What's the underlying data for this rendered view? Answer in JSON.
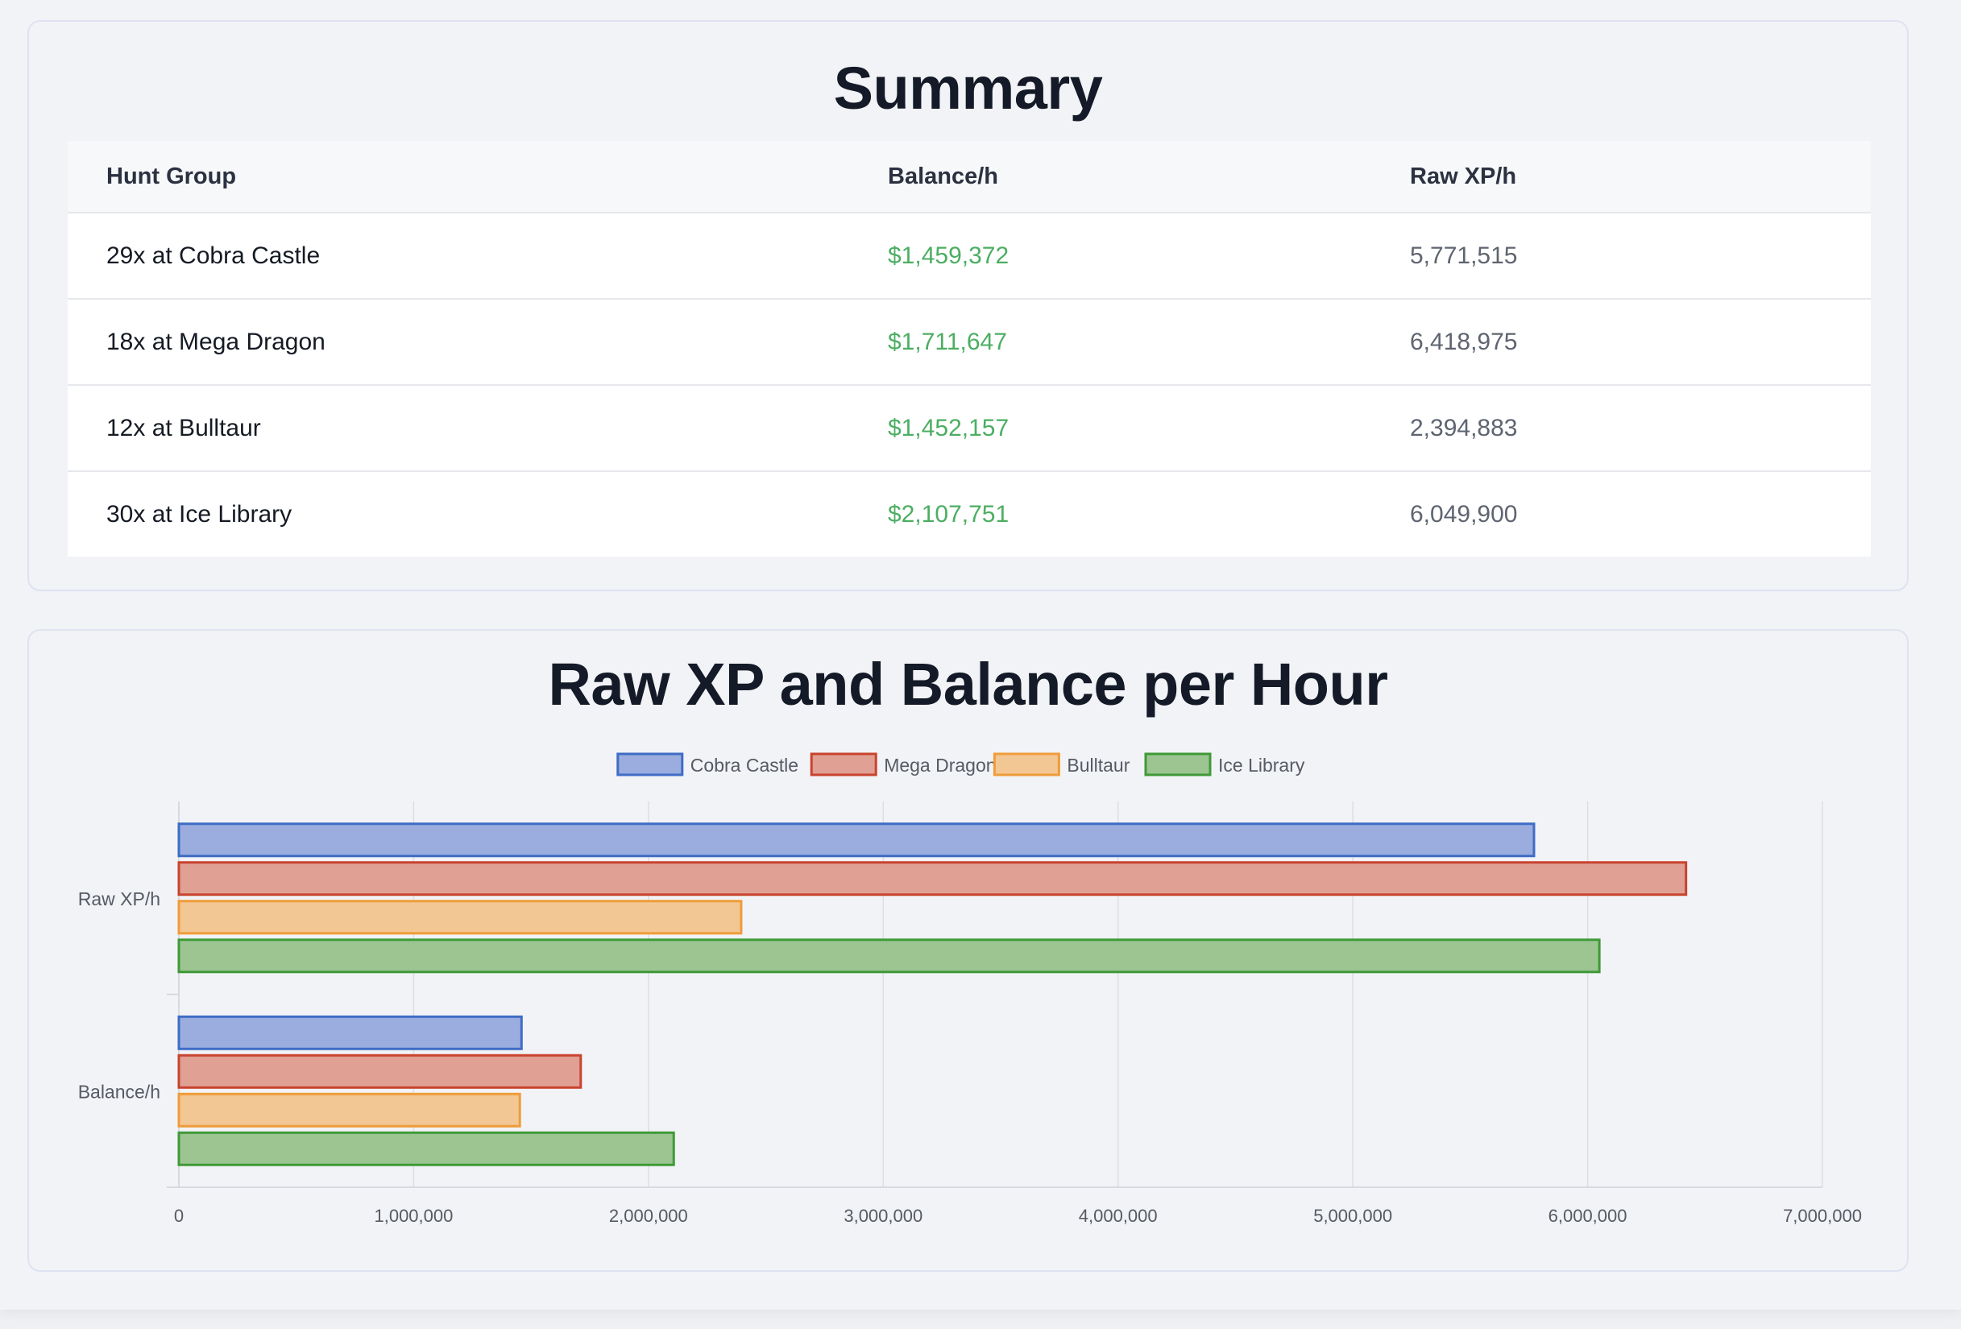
{
  "summary": {
    "title": "Summary",
    "columns": [
      "Hunt Group",
      "Balance/h",
      "Raw XP/h"
    ],
    "rows": [
      {
        "group": "29x at Cobra Castle",
        "balance": "$1,459,372",
        "xp": "5,771,515"
      },
      {
        "group": "18x at Mega Dragon",
        "balance": "$1,711,647",
        "xp": "6,418,975"
      },
      {
        "group": "12x at Bulltaur",
        "balance": "$1,452,157",
        "xp": "2,394,883"
      },
      {
        "group": "30x at Ice Library",
        "balance": "$2,107,751",
        "xp": "6,049,900"
      }
    ]
  },
  "chart_data": {
    "type": "bar",
    "orientation": "horizontal",
    "title": "Raw XP and Balance per Hour",
    "categories": [
      "Raw XP/h",
      "Balance/h"
    ],
    "series": [
      {
        "name": "Cobra Castle",
        "values": [
          5771515,
          1459372
        ],
        "fill": "#9aadde",
        "stroke": "#3f6cc6"
      },
      {
        "name": "Mega Dragon",
        "values": [
          6418975,
          1711647
        ],
        "fill": "#e0a093",
        "stroke": "#c9432f"
      },
      {
        "name": "Bulltaur",
        "values": [
          2394883,
          1452157
        ],
        "fill": "#f3c794",
        "stroke": "#ef9c3a"
      },
      {
        "name": "Ice Library",
        "values": [
          6049900,
          2107751
        ],
        "fill": "#9cc592",
        "stroke": "#3f9a37"
      }
    ],
    "xlim": [
      0,
      7000000
    ],
    "xticks": [
      0,
      1000000,
      2000000,
      3000000,
      4000000,
      5000000,
      6000000,
      7000000
    ],
    "xtick_labels": [
      "0",
      "1,000,000",
      "2,000,000",
      "3,000,000",
      "4,000,000",
      "5,000,000",
      "6,000,000",
      "7,000,000"
    ],
    "legend_position": "top-center",
    "grid": true
  }
}
